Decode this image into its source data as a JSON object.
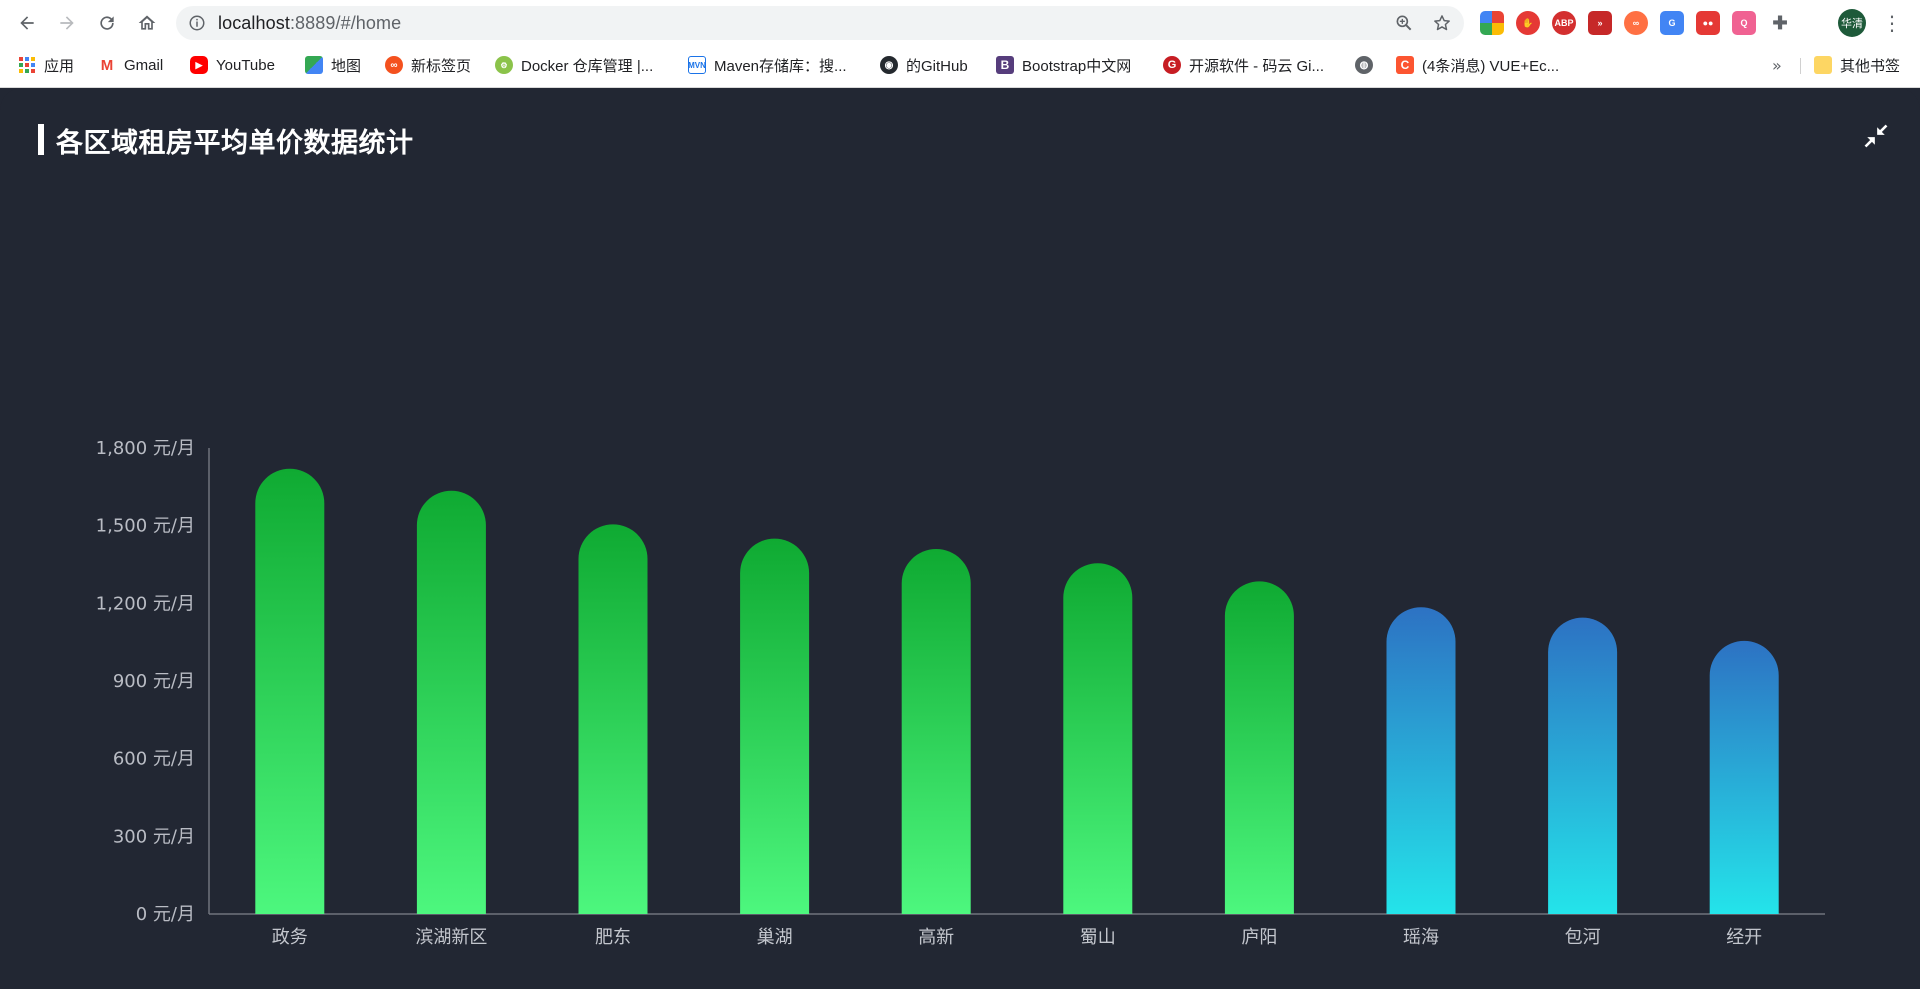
{
  "browser": {
    "url_host": "localhost",
    "url_rest": ":8889/#/home",
    "avatar_text": "华清",
    "bookmarks": [
      {
        "label": "应用",
        "icon": "apps-grid-icon",
        "color": "#4285f4"
      },
      {
        "label": "Gmail",
        "icon": "gmail-icon",
        "color": "#ea4335"
      },
      {
        "label": "YouTube",
        "icon": "youtube-icon",
        "color": "#ff0000"
      },
      {
        "label": "地图",
        "icon": "maps-icon",
        "color": "#34a853"
      },
      {
        "label": "新标签页",
        "icon": "newtab-icon",
        "color": "#f4511e"
      },
      {
        "label": "Docker 仓库管理 |...",
        "icon": "docker-icon",
        "color": "#8bc34a"
      },
      {
        "label": "Maven存储库：搜...",
        "icon": "maven-icon",
        "color": "#1a73e8"
      },
      {
        "label": "的GitHub",
        "icon": "github-icon",
        "color": "#24292e"
      },
      {
        "label": "Bootstrap中文网",
        "icon": "bootstrap-icon",
        "color": "#563d7c"
      },
      {
        "label": "开源软件 - 码云 Gi...",
        "icon": "gitee-icon",
        "color": "#c71d23"
      },
      {
        "label": "",
        "icon": "globe-icon",
        "color": "#5f6368"
      },
      {
        "label": "(4条消息) VUE+Ec...",
        "icon": "csdn-icon",
        "color": "#fc5531"
      }
    ],
    "more_bookmarks": "»",
    "other_bookmarks": "其他书签"
  },
  "panel": {
    "title": "各区域租房平均单价数据统计"
  },
  "chart_data": {
    "type": "bar",
    "title": "各区域租房平均单价数据统计",
    "categories": [
      "政务",
      "滨湖新区",
      "肥东",
      "巢湖",
      "高新",
      "蜀山",
      "庐阳",
      "瑶海",
      "包河",
      "经开"
    ],
    "values": [
      1720,
      1635,
      1505,
      1450,
      1410,
      1355,
      1285,
      1185,
      1145,
      1055
    ],
    "ylim": [
      0,
      1800
    ],
    "yticks": [
      0,
      300,
      600,
      900,
      1200,
      1500,
      1800
    ],
    "y_unit": "元/月",
    "ytick_labels": [
      "0 元/月",
      "300 元/月",
      "600 元/月",
      "900 元/月",
      "1,200 元/月",
      "1,500 元/月",
      "1,800 元/月"
    ],
    "grid": false,
    "colors": {
      "green_top": "#0faa32",
      "green_bottom": "#4df77e",
      "blue_top": "#2d72c3",
      "blue_bottom": "#24e4ea",
      "axis": "#6f737d"
    },
    "blue_categories": [
      "瑶海",
      "包河",
      "经开"
    ]
  }
}
